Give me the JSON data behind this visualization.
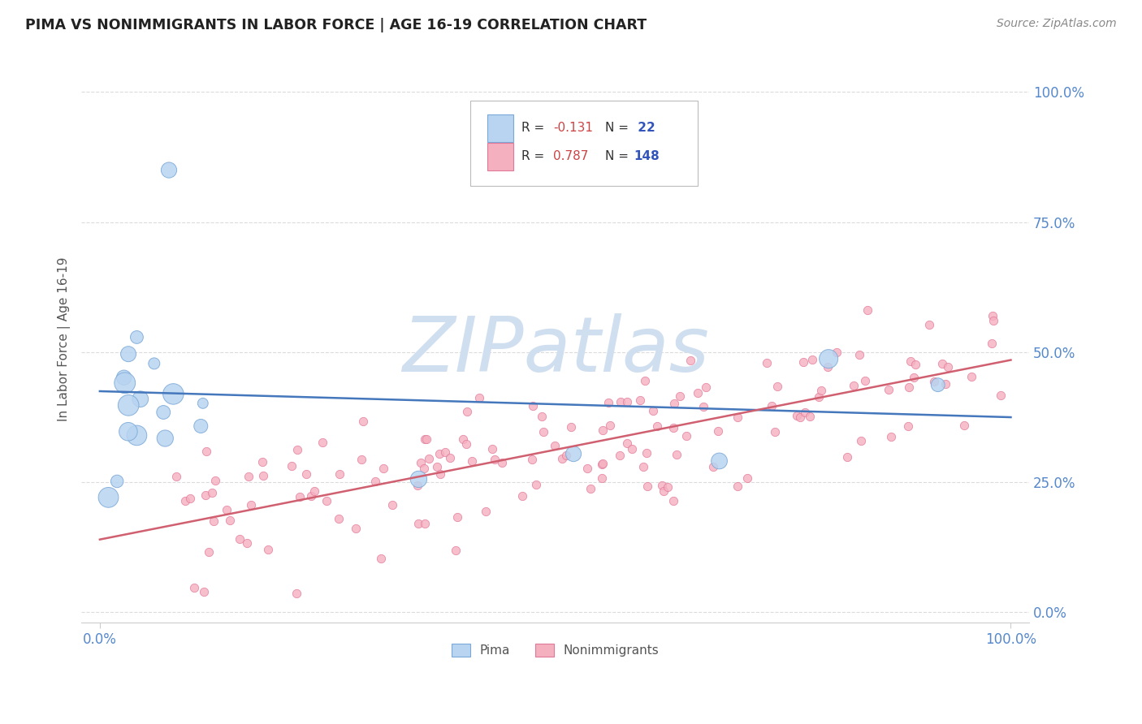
{
  "title": "PIMA VS NONIMMIGRANTS IN LABOR FORCE | AGE 16-19 CORRELATION CHART",
  "source_text": "Source: ZipAtlas.com",
  "ylabel": "In Labor Force | Age 16-19",
  "right_ytick_labels": [
    "0.0%",
    "25.0%",
    "50.0%",
    "75.0%",
    "100.0%"
  ],
  "right_ytick_values": [
    0.0,
    0.25,
    0.5,
    0.75,
    1.0
  ],
  "xlim": [
    -0.02,
    1.02
  ],
  "ylim": [
    -0.02,
    1.07
  ],
  "pima_color": "#b8d4f0",
  "pima_edge_color": "#7aa8d8",
  "nonimm_color": "#f5b0c0",
  "nonimm_edge_color": "#e07898",
  "pima_line_color": "#4477bb",
  "nonimm_line_color": "#d06070",
  "grid_color": "#cccccc",
  "background_color": "#ffffff",
  "watermark_color": "#d0dff0",
  "legend_R_pima": "R = -0.131",
  "legend_N_pima": "N =  22",
  "legend_R_nonimm": "R = 0.787",
  "legend_N_nonimm": "N = 148",
  "pima_R": -0.131,
  "nonimm_R": 0.787,
  "pima_N": 22,
  "nonimm_N": 148,
  "pima_line_x0": 0.0,
  "pima_line_y0": 0.425,
  "pima_line_x1": 1.0,
  "pima_line_y1": 0.375,
  "nonimm_line_x0": 0.0,
  "nonimm_line_y0": 0.14,
  "nonimm_line_x1": 1.0,
  "nonimm_line_y1": 0.485,
  "title_color": "#222222",
  "axis_label_color": "#555555",
  "tick_label_color": "#5588cc",
  "source_color": "#888888",
  "legend_value_color": "#cc4444",
  "legend_N_color": "#3355bb"
}
